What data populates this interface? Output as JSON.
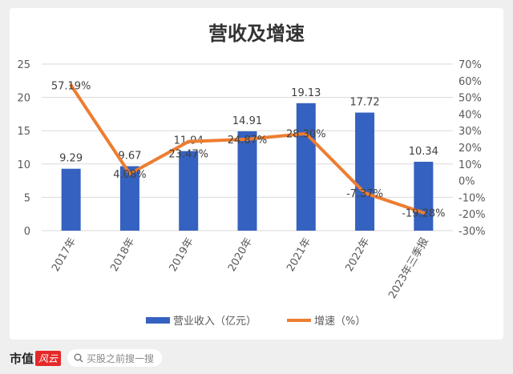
{
  "chart_data": {
    "type": "bar+line",
    "title": "营收及增速",
    "categories": [
      "2017年",
      "2018年",
      "2019年",
      "2020年",
      "2021年",
      "2022年",
      "2023年三季报"
    ],
    "series": [
      {
        "name": "营业收入（亿元）",
        "type": "bar",
        "axis": "left",
        "values": [
          9.29,
          9.67,
          11.94,
          14.91,
          19.13,
          17.72,
          10.34
        ],
        "labels": [
          "9.29",
          "9.67",
          "11.94",
          "14.91",
          "19.13",
          "17.72",
          "10.34"
        ],
        "color": "#3561c0"
      },
      {
        "name": "增速（%）",
        "type": "line",
        "axis": "right",
        "values": [
          57.19,
          4.08,
          23.47,
          24.87,
          28.3,
          -7.37,
          -19.28
        ],
        "labels": [
          "57.19%",
          "4.08%",
          "23.47%",
          "24.87%",
          "28.30%",
          "-7.37%",
          "-19.28%"
        ],
        "color": "#ed7d31"
      }
    ],
    "y_left": {
      "range": [
        0,
        25
      ],
      "ticks": [
        "0",
        "5",
        "10",
        "15",
        "20",
        "25"
      ]
    },
    "y_right": {
      "range": [
        -30,
        70
      ],
      "ticks": [
        "-30%",
        "-20%",
        "-10%",
        "0%",
        "10%",
        "20%",
        "30%",
        "40%",
        "50%",
        "60%",
        "70%"
      ]
    },
    "grid": true,
    "legend": "bottom"
  },
  "footer": {
    "brand": "市值",
    "brand_logo": "风云",
    "search_placeholder": "买股之前搜一搜"
  },
  "watermark": "市值风云"
}
